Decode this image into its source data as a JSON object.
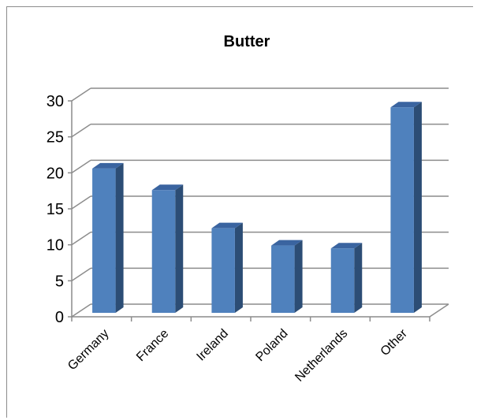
{
  "chart_data": {
    "type": "bar",
    "title": "Butter",
    "xlabel": "",
    "ylabel": "",
    "categories": [
      "Germany",
      "France",
      "Ireland",
      "Poland",
      "Netherlands",
      "Other"
    ],
    "values": [
      20.6,
      17.6,
      12.3,
      9.9,
      9.5,
      29.1
    ],
    "yticks": [
      "0",
      "5",
      "10",
      "15",
      "20",
      "25",
      "30"
    ],
    "ylim": [
      0,
      30
    ],
    "grid": true,
    "legend": "none",
    "colors": {
      "bar_front": "#4f81bd",
      "bar_side": "#2c4d75",
      "bar_top": "#3a64a0",
      "grid": "#8c8c8c"
    }
  }
}
